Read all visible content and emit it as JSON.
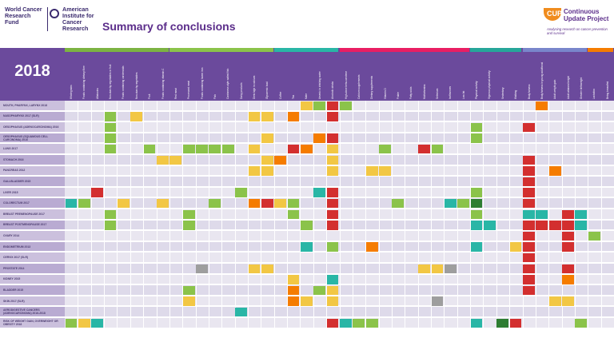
{
  "header": {
    "logo_left_line1": "World Cancer Research Fund",
    "logo_left_line2": "American Institute for Cancer Research",
    "title": "Summary of conclusions",
    "cup_mark": "CUP",
    "cup_title": "Continuous Update Project",
    "cup_subtitle": "Analysing research on cancer prevention and survival"
  },
  "matrix": {
    "year": "2018",
    "categories": [
      {
        "name": "wholegrains-fibre",
        "color": "#7cb342"
      },
      {
        "name": "vegetables-fruit",
        "color": "#8bc34a"
      },
      {
        "name": "meat-fish-dairy",
        "color": "#f2c744"
      },
      {
        "name": "preservation",
        "color": "#f0a830"
      },
      {
        "name": "drinks",
        "color": "#29b6a6"
      },
      {
        "name": "alcohol",
        "color": "#d32f2f"
      },
      {
        "name": "food-supplements",
        "color": "#e91e63"
      },
      {
        "name": "physical-activity",
        "color": "#26a69a"
      },
      {
        "name": "body-fatness",
        "color": "#7986cb"
      },
      {
        "name": "height",
        "color": "#ad1457"
      },
      {
        "name": "lactation",
        "color": "#f57c00"
      }
    ],
    "columns": [
      "Wholegrains",
      "Foods containing dietary fibre",
      "Aflatoxins",
      "Non-starchy vegetables or fruit",
      "Foods containing carotenoids",
      "Non-starchy vegetables",
      "Fruit",
      "Foods containing vitamin C",
      "Red meat",
      "Processed meat",
      "Foods containing haem iron",
      "Fish",
      "Cantonese-style salted fish",
      "Dairy products",
      "Diets high in calcium",
      "Glycaemic load",
      "Coffee",
      "Tea",
      "Mate",
      "Arsenic in drinking water",
      "Alcoholic drinks",
      "High-dose beta-carotene",
      "Calcium supplements",
      "Dietary supplements",
      "Vitamin D",
      "Folate",
      "Fatty acids",
      "Multivitamins",
      "Selenium",
      "Isoflavones",
      "Low fat",
      "Physical activity",
      "Vigorous physical activity",
      "Sedentary",
      "Walking",
      "Body fatness",
      "Body fatness in young adulthood",
      "Adult weight gain",
      "Adult attained height",
      "Greater birthweight",
      "Lactation",
      "Being breastfed"
    ],
    "rows": [
      {
        "label": "MOUTH, PHARYNX, LARYNX 2018"
      },
      {
        "label": "NASOPHARYNX 2017 (SLR)"
      },
      {
        "label": "OESOPHAGUS (ADENOCARCINOMA) 2016"
      },
      {
        "label": "OESOPHAGUS (SQUAMOUS CELL CARCINOMA) 2016"
      },
      {
        "label": "LUNG 2017"
      },
      {
        "label": "STOMACH 2016"
      },
      {
        "label": "PANCREAS 2012"
      },
      {
        "label": "GALLBLADDER 2015"
      },
      {
        "label": "LIVER 2015"
      },
      {
        "label": "COLORECTUM 2017"
      },
      {
        "label": "BREAST PREMENOPAUSE 2017"
      },
      {
        "label": "BREAST POSTMENOPAUSE 2017"
      },
      {
        "label": "OVARY 2014"
      },
      {
        "label": "ENDOMETRIUM 2013"
      },
      {
        "label": "CERVIX 2017 (SLR)"
      },
      {
        "label": "PROSTATE 2014"
      },
      {
        "label": "KIDNEY 2015"
      },
      {
        "label": "BLADDER 2015"
      },
      {
        "label": "SKIN 2017 (SLR)"
      },
      {
        "label": "AERODIGESTIVE CANCERS (ADENOCARCINOMA) 2016-2018"
      },
      {
        "label": "RISK OF WEIGHT GAIN, OVERWEIGHT OR OBESITY 2018"
      }
    ],
    "cells": [
      {
        "r": 0,
        "c": 18,
        "color": "#f2c744",
        "text": ""
      },
      {
        "r": 0,
        "c": 19,
        "color": "#8bc34a",
        "text": ""
      },
      {
        "r": 0,
        "c": 20,
        "color": "#d32f2f",
        "text": ""
      },
      {
        "r": 0,
        "c": 21,
        "color": "#8bc34a",
        "text": ""
      },
      {
        "r": 0,
        "c": 36,
        "color": "#f57c00",
        "text": ""
      },
      {
        "r": 1,
        "c": 3,
        "color": "#8bc34a",
        "text": ""
      },
      {
        "r": 1,
        "c": 5,
        "color": "#f2c744",
        "text": ""
      },
      {
        "r": 1,
        "c": 14,
        "color": "#f2c744",
        "text": ""
      },
      {
        "r": 1,
        "c": 15,
        "color": "#f2c744",
        "text": ""
      },
      {
        "r": 1,
        "c": 17,
        "color": "#f57c00",
        "text": ""
      },
      {
        "r": 1,
        "c": 20,
        "color": "#d32f2f",
        "text": ""
      },
      {
        "r": 2,
        "c": 3,
        "color": "#8bc34a",
        "text": ""
      },
      {
        "r": 2,
        "c": 31,
        "color": "#8bc34a",
        "text": ""
      },
      {
        "r": 2,
        "c": 35,
        "color": "#d32f2f",
        "text": ""
      },
      {
        "r": 3,
        "c": 3,
        "color": "#8bc34a",
        "text": ""
      },
      {
        "r": 3,
        "c": 15,
        "color": "#f2c744",
        "text": ""
      },
      {
        "r": 3,
        "c": 19,
        "color": "#f57c00",
        "text": ""
      },
      {
        "r": 3,
        "c": 20,
        "color": "#d32f2f",
        "text": ""
      },
      {
        "r": 3,
        "c": 31,
        "color": "#8bc34a",
        "text": ""
      },
      {
        "r": 4,
        "c": 3,
        "color": "#8bc34a",
        "text": ""
      },
      {
        "r": 4,
        "c": 6,
        "color": "#8bc34a",
        "text": ""
      },
      {
        "r": 4,
        "c": 9,
        "color": "#8bc34a",
        "text": ""
      },
      {
        "r": 4,
        "c": 10,
        "color": "#8bc34a",
        "text": ""
      },
      {
        "r": 4,
        "c": 11,
        "color": "#8bc34a",
        "text": ""
      },
      {
        "r": 4,
        "c": 12,
        "color": "#8bc34a",
        "text": ""
      },
      {
        "r": 4,
        "c": 14,
        "color": "#f2c744",
        "text": ""
      },
      {
        "r": 4,
        "c": 17,
        "color": "#d32f2f",
        "text": ""
      },
      {
        "r": 4,
        "c": 18,
        "color": "#f57c00",
        "text": ""
      },
      {
        "r": 4,
        "c": 20,
        "color": "#f2c744",
        "text": ""
      },
      {
        "r": 4,
        "c": 24,
        "color": "#8bc34a",
        "text": ""
      },
      {
        "r": 4,
        "c": 27,
        "color": "#d32f2f",
        "text": ""
      },
      {
        "r": 4,
        "c": 28,
        "color": "#8bc34a",
        "text": ""
      },
      {
        "r": 5,
        "c": 7,
        "color": "#f2c744",
        "text": ""
      },
      {
        "r": 5,
        "c": 8,
        "color": "#f2c744",
        "text": ""
      },
      {
        "r": 5,
        "c": 15,
        "color": "#f2c744",
        "text": ""
      },
      {
        "r": 5,
        "c": 16,
        "color": "#f57c00",
        "text": ""
      },
      {
        "r": 5,
        "c": 20,
        "color": "#f2c744",
        "text": ""
      },
      {
        "r": 5,
        "c": 35,
        "color": "#d32f2f",
        "text": ""
      },
      {
        "r": 6,
        "c": 14,
        "color": "#f2c744",
        "text": ""
      },
      {
        "r": 6,
        "c": 15,
        "color": "#f2c744",
        "text": ""
      },
      {
        "r": 6,
        "c": 20,
        "color": "#f2c744",
        "text": ""
      },
      {
        "r": 6,
        "c": 23,
        "color": "#f2c744",
        "text": ""
      },
      {
        "r": 6,
        "c": 24,
        "color": "#f2c744",
        "text": ""
      },
      {
        "r": 6,
        "c": 35,
        "color": "#d32f2f",
        "text": ""
      },
      {
        "r": 6,
        "c": 37,
        "color": "#f57c00",
        "text": ""
      },
      {
        "r": 7,
        "c": 35,
        "color": "#d32f2f",
        "text": ""
      },
      {
        "r": 8,
        "c": 2,
        "color": "#d32f2f",
        "text": ""
      },
      {
        "r": 8,
        "c": 13,
        "color": "#8bc34a",
        "text": ""
      },
      {
        "r": 8,
        "c": 19,
        "color": "#29b6a6",
        "text": ""
      },
      {
        "r": 8,
        "c": 20,
        "color": "#d32f2f",
        "text": ""
      },
      {
        "r": 8,
        "c": 31,
        "color": "#8bc34a",
        "text": ""
      },
      {
        "r": 8,
        "c": 35,
        "color": "#d32f2f",
        "text": ""
      },
      {
        "r": 9,
        "c": 0,
        "color": "#29b6a6",
        "text": ""
      },
      {
        "r": 9,
        "c": 1,
        "color": "#8bc34a",
        "text": ""
      },
      {
        "r": 9,
        "c": 4,
        "color": "#f2c744",
        "text": ""
      },
      {
        "r": 9,
        "c": 7,
        "color": "#f2c744",
        "text": ""
      },
      {
        "r": 9,
        "c": 11,
        "color": "#8bc34a",
        "text": ""
      },
      {
        "r": 9,
        "c": 14,
        "color": "#f57c00",
        "text": ""
      },
      {
        "r": 9,
        "c": 15,
        "color": "#d32f2f",
        "text": ""
      },
      {
        "r": 9,
        "c": 16,
        "color": "#f2c744",
        "text": ""
      },
      {
        "r": 9,
        "c": 17,
        "color": "#8bc34a",
        "text": ""
      },
      {
        "r": 9,
        "c": 20,
        "color": "#d32f2f",
        "text": ""
      },
      {
        "r": 9,
        "c": 25,
        "color": "#8bc34a",
        "text": ""
      },
      {
        "r": 9,
        "c": 29,
        "color": "#29b6a6",
        "text": ""
      },
      {
        "r": 9,
        "c": 30,
        "color": "#8bc34a",
        "text": ""
      },
      {
        "r": 9,
        "c": 31,
        "color": "#2e7d32",
        "text": ""
      },
      {
        "r": 9,
        "c": 35,
        "color": "#d32f2f",
        "text": ""
      },
      {
        "r": 10,
        "c": 3,
        "color": "#8bc34a",
        "text": ""
      },
      {
        "r": 10,
        "c": 9,
        "color": "#8bc34a",
        "text": ""
      },
      {
        "r": 10,
        "c": 17,
        "color": "#8bc34a",
        "text": ""
      },
      {
        "r": 10,
        "c": 20,
        "color": "#d32f2f",
        "text": ""
      },
      {
        "r": 10,
        "c": 31,
        "color": "#8bc34a",
        "text": ""
      },
      {
        "r": 10,
        "c": 35,
        "color": "#29b6a6",
        "text": ""
      },
      {
        "r": 10,
        "c": 36,
        "color": "#29b6a6",
        "text": ""
      },
      {
        "r": 10,
        "c": 38,
        "color": "#d32f2f",
        "text": ""
      },
      {
        "r": 10,
        "c": 39,
        "color": "#29b6a6",
        "text": ""
      },
      {
        "r": 11,
        "c": 3,
        "color": "#8bc34a",
        "text": ""
      },
      {
        "r": 11,
        "c": 9,
        "color": "#8bc34a",
        "text": ""
      },
      {
        "r": 11,
        "c": 18,
        "color": "#8bc34a",
        "text": ""
      },
      {
        "r": 11,
        "c": 20,
        "color": "#d32f2f",
        "text": ""
      },
      {
        "r": 11,
        "c": 31,
        "color": "#29b6a6",
        "text": ""
      },
      {
        "r": 11,
        "c": 32,
        "color": "#29b6a6",
        "text": ""
      },
      {
        "r": 11,
        "c": 35,
        "color": "#d32f2f",
        "text": ""
      },
      {
        "r": 11,
        "c": 36,
        "color": "#d32f2f",
        "text": ""
      },
      {
        "r": 11,
        "c": 37,
        "color": "#d32f2f",
        "text": ""
      },
      {
        "r": 11,
        "c": 38,
        "color": "#d32f2f",
        "text": ""
      },
      {
        "r": 11,
        "c": 39,
        "color": "#29b6a6",
        "text": ""
      },
      {
        "r": 12,
        "c": 35,
        "color": "#d32f2f",
        "text": ""
      },
      {
        "r": 12,
        "c": 38,
        "color": "#d32f2f",
        "text": ""
      },
      {
        "r": 12,
        "c": 40,
        "color": "#8bc34a",
        "text": ""
      },
      {
        "r": 13,
        "c": 23,
        "color": "#f57c00",
        "text": ""
      },
      {
        "r": 13,
        "c": 18,
        "color": "#29b6a6",
        "text": ""
      },
      {
        "r": 13,
        "c": 20,
        "color": "#8bc34a",
        "text": ""
      },
      {
        "r": 13,
        "c": 31,
        "color": "#29b6a6",
        "text": ""
      },
      {
        "r": 13,
        "c": 34,
        "color": "#f2c744",
        "text": ""
      },
      {
        "r": 13,
        "c": 35,
        "color": "#d32f2f",
        "text": ""
      },
      {
        "r": 13,
        "c": 38,
        "color": "#d32f2f",
        "text": ""
      },
      {
        "r": 14,
        "c": 35,
        "color": "#d32f2f",
        "text": ""
      },
      {
        "r": 15,
        "c": 10,
        "color": "#9e9e9e",
        "text": ""
      },
      {
        "r": 15,
        "c": 14,
        "color": "#f2c744",
        "text": ""
      },
      {
        "r": 15,
        "c": 15,
        "color": "#f2c744",
        "text": ""
      },
      {
        "r": 15,
        "c": 27,
        "color": "#f2c744",
        "text": ""
      },
      {
        "r": 15,
        "c": 28,
        "color": "#f2c744",
        "text": ""
      },
      {
        "r": 15,
        "c": 29,
        "color": "#9e9e9e",
        "text": ""
      },
      {
        "r": 15,
        "c": 35,
        "color": "#d32f2f",
        "text": ""
      },
      {
        "r": 15,
        "c": 38,
        "color": "#d32f2f",
        "text": ""
      },
      {
        "r": 16,
        "c": 17,
        "color": "#f2c744",
        "text": ""
      },
      {
        "r": 16,
        "c": 20,
        "color": "#29b6a6",
        "text": ""
      },
      {
        "r": 16,
        "c": 35,
        "color": "#d32f2f",
        "text": ""
      },
      {
        "r": 16,
        "c": 38,
        "color": "#f57c00",
        "text": ""
      },
      {
        "r": 17,
        "c": 9,
        "color": "#8bc34a",
        "text": ""
      },
      {
        "r": 17,
        "c": 17,
        "color": "#f57c00",
        "text": ""
      },
      {
        "r": 17,
        "c": 19,
        "color": "#8bc34a",
        "text": ""
      },
      {
        "r": 17,
        "c": 20,
        "color": "#f2c744",
        "text": ""
      },
      {
        "r": 17,
        "c": 35,
        "color": "#d32f2f",
        "text": ""
      },
      {
        "r": 18,
        "c": 9,
        "color": "#f2c744",
        "text": ""
      },
      {
        "r": 18,
        "c": 17,
        "color": "#f57c00",
        "text": ""
      },
      {
        "r": 18,
        "c": 18,
        "color": "#f2c744",
        "text": ""
      },
      {
        "r": 18,
        "c": 20,
        "color": "#f2c744",
        "text": ""
      },
      {
        "r": 18,
        "c": 28,
        "color": "#9e9e9e",
        "text": ""
      },
      {
        "r": 18,
        "c": 37,
        "color": "#f2c744",
        "text": ""
      },
      {
        "r": 18,
        "c": 38,
        "color": "#f2c744",
        "text": ""
      },
      {
        "r": 19,
        "c": 13,
        "color": "#29b6a6",
        "text": ""
      },
      {
        "r": 20,
        "c": 0,
        "color": "#8bc34a",
        "text": ""
      },
      {
        "r": 20,
        "c": 1,
        "color": "#f2c744",
        "text": ""
      },
      {
        "r": 20,
        "c": 2,
        "color": "#29b6a6",
        "text": ""
      },
      {
        "r": 20,
        "c": 20,
        "color": "#d32f2f",
        "text": ""
      },
      {
        "r": 20,
        "c": 21,
        "color": "#29b6a6",
        "text": ""
      },
      {
        "r": 20,
        "c": 22,
        "color": "#8bc34a",
        "text": ""
      },
      {
        "r": 20,
        "c": 23,
        "color": "#8bc34a",
        "text": ""
      },
      {
        "r": 20,
        "c": 31,
        "color": "#29b6a6",
        "text": ""
      },
      {
        "r": 20,
        "c": 33,
        "color": "#2e7d32",
        "text": ""
      },
      {
        "r": 20,
        "c": 34,
        "color": "#d32f2f",
        "text": ""
      },
      {
        "r": 20,
        "c": 39,
        "color": "#8bc34a",
        "text": ""
      }
    ]
  }
}
